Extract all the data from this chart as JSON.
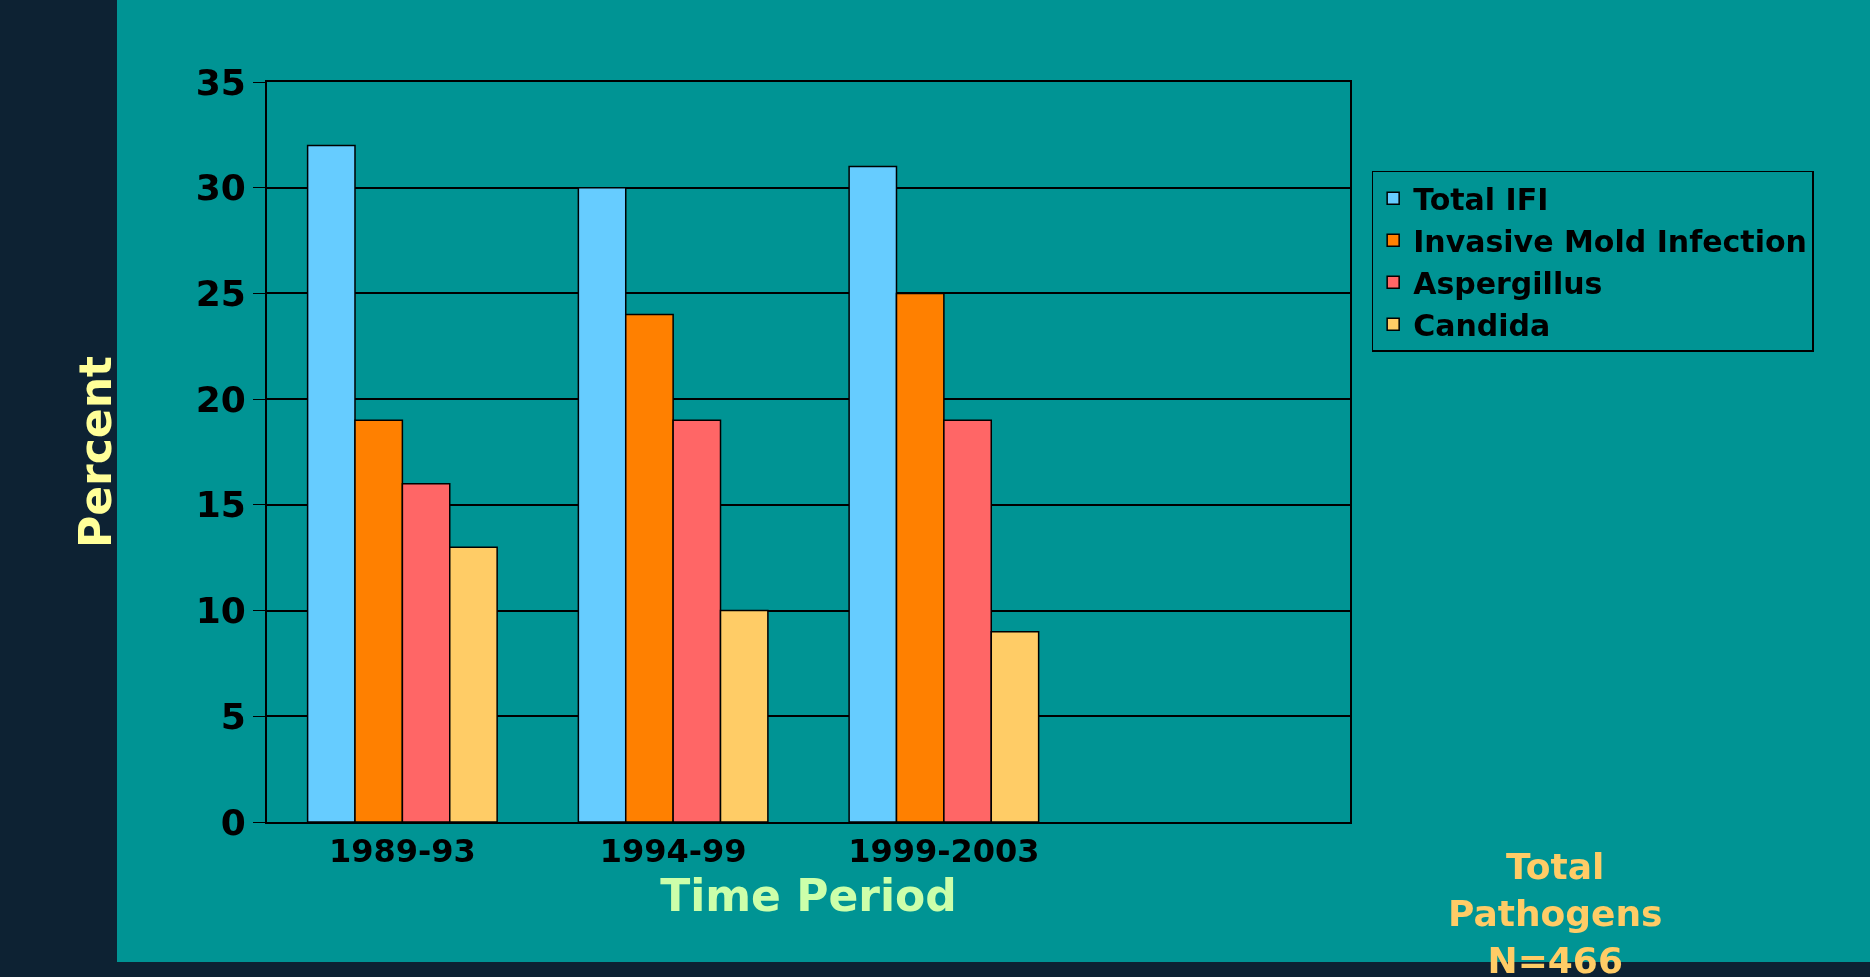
{
  "chart_data": {
    "type": "bar",
    "xlabel": "Time Period",
    "ylabel": "Percent",
    "categories": [
      "1989-93",
      "1994-99",
      "1999-2003",
      null
    ],
    "series": [
      {
        "name": "Total IFI",
        "color": "#66ccff",
        "values": [
          32,
          30,
          31,
          null
        ]
      },
      {
        "name": "Invasive Mold Infection",
        "color": "#ff8000",
        "values": [
          19,
          24,
          25,
          null
        ]
      },
      {
        "name": "Aspergillus",
        "color": "#ff6666",
        "values": [
          16,
          19,
          19,
          null
        ]
      },
      {
        "name": "Candida",
        "color": "#ffcc66",
        "values": [
          13,
          10,
          9,
          null
        ]
      }
    ],
    "ylim": [
      0,
      35
    ],
    "yticks": [
      0,
      5,
      10,
      15,
      20,
      25,
      30,
      35
    ],
    "grid": "y",
    "legend": "right",
    "annotations": [
      "Total\nPathogens\nN=466"
    ]
  }
}
